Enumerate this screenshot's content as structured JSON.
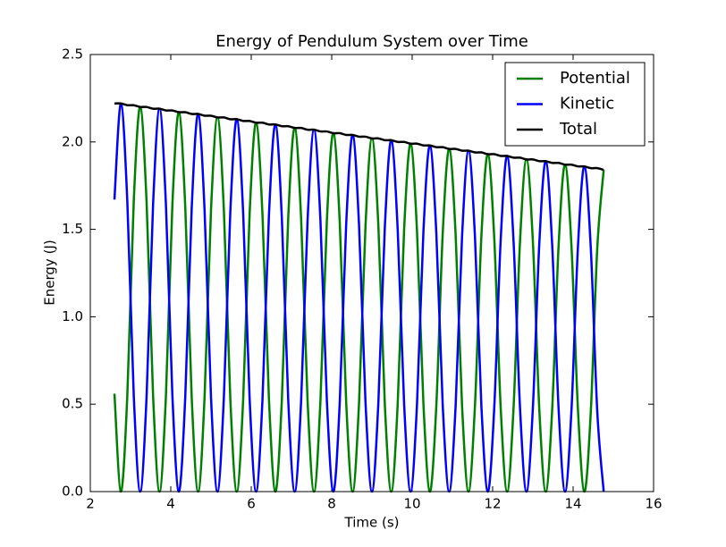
{
  "chart_data": {
    "type": "line",
    "title": "Energy of Pendulum System over Time",
    "x_label": "Time (s)",
    "y_label": "Energy (J)",
    "xlim": [
      2,
      16
    ],
    "ylim": [
      0,
      2.5
    ],
    "xticks": [
      2,
      4,
      6,
      8,
      10,
      12,
      14,
      16
    ],
    "yticks": [
      {
        "value": 0,
        "label": "0.0"
      },
      0.5,
      {
        "value": 1,
        "label": "1.0"
      },
      1.5,
      {
        "value": 2,
        "label": "2.0"
      },
      2.5
    ],
    "grid": false,
    "legend": "upper right",
    "x": [
      2.6,
      2.76,
      2.92,
      3.08,
      3.24,
      3.4,
      3.56,
      3.72,
      3.88,
      4.04,
      4.2,
      4.36,
      4.52,
      4.68,
      4.84,
      5.0,
      5.16,
      5.32,
      5.48,
      5.64,
      5.8,
      5.96,
      6.12,
      6.28,
      6.44,
      6.6,
      6.76,
      6.92,
      7.08,
      7.24,
      7.4,
      7.56,
      7.72,
      7.88,
      8.04,
      8.2,
      8.36,
      8.52,
      8.68,
      8.84,
      9.0,
      9.16,
      9.32,
      9.48,
      9.64,
      9.8,
      9.96,
      10.12,
      10.28,
      10.44,
      10.6,
      10.76,
      10.92,
      11.08,
      11.24,
      11.4,
      11.56,
      11.72,
      11.88,
      12.04,
      12.2,
      12.36,
      12.52,
      12.68,
      12.84,
      13.0,
      13.16,
      13.32,
      13.48,
      13.64,
      13.8,
      13.96,
      14.12,
      14.28,
      14.44,
      14.6,
      14.76
    ],
    "series": [
      {
        "name": "Potential",
        "color": "#008000",
        "values": [
          0.56,
          0,
          0.55,
          1.66,
          2.2,
          1.65,
          0.55,
          0,
          0.55,
          1.64,
          2.17,
          1.63,
          0.54,
          0,
          0.54,
          1.61,
          2.14,
          1.61,
          0.53,
          0,
          0.53,
          1.59,
          2.11,
          1.58,
          0.53,
          0,
          0.52,
          1.57,
          2.08,
          1.56,
          0.52,
          0,
          0.52,
          1.55,
          2.05,
          1.54,
          0.51,
          0,
          0.51,
          1.52,
          2.02,
          1.52,
          0.5,
          0,
          0.5,
          1.5,
          1.99,
          1.49,
          0.5,
          0,
          0.49,
          1.48,
          1.96,
          1.47,
          0.49,
          0,
          0.49,
          1.46,
          1.93,
          1.45,
          0.48,
          0,
          0.48,
          1.43,
          1.9,
          1.43,
          0.47,
          0,
          0.47,
          1.41,
          1.87,
          1.4,
          0.47,
          0,
          0.46,
          1.39,
          1.84
        ]
      },
      {
        "name": "Kinetic",
        "color": "#0000ff",
        "values": [
          1.67,
          2.22,
          1.66,
          0.55,
          0,
          0.55,
          1.64,
          2.19,
          1.64,
          0.55,
          0,
          0.54,
          1.62,
          2.16,
          1.61,
          0.54,
          0,
          0.54,
          1.6,
          2.13,
          1.59,
          0.53,
          0,
          0.53,
          1.58,
          2.1,
          1.57,
          0.52,
          0,
          0.52,
          1.55,
          2.07,
          1.55,
          0.52,
          0,
          0.51,
          1.53,
          2.04,
          1.52,
          0.51,
          0,
          0.51,
          1.51,
          2.01,
          1.5,
          0.5,
          0,
          0.5,
          1.49,
          1.98,
          1.48,
          0.49,
          0,
          0.49,
          1.46,
          1.95,
          1.46,
          0.49,
          0,
          0.48,
          1.44,
          1.92,
          1.43,
          0.48,
          0,
          0.48,
          1.42,
          1.89,
          1.41,
          0.47,
          0,
          0.47,
          1.4,
          1.86,
          1.39,
          0.46,
          0
        ]
      },
      {
        "name": "Total",
        "color": "#000000",
        "values": [
          2.22,
          2.22,
          2.21,
          2.21,
          2.2,
          2.2,
          2.19,
          2.19,
          2.18,
          2.18,
          2.17,
          2.17,
          2.16,
          2.16,
          2.15,
          2.15,
          2.14,
          2.14,
          2.13,
          2.13,
          2.12,
          2.12,
          2.11,
          2.11,
          2.1,
          2.1,
          2.09,
          2.09,
          2.08,
          2.08,
          2.07,
          2.07,
          2.06,
          2.06,
          2.05,
          2.05,
          2.04,
          2.04,
          2.03,
          2.03,
          2.02,
          2.02,
          2.01,
          2.01,
          2,
          2,
          1.99,
          1.99,
          1.98,
          1.98,
          1.97,
          1.97,
          1.96,
          1.96,
          1.95,
          1.95,
          1.94,
          1.94,
          1.93,
          1.93,
          1.92,
          1.92,
          1.91,
          1.91,
          1.9,
          1.9,
          1.89,
          1.89,
          1.88,
          1.88,
          1.87,
          1.87,
          1.86,
          1.86,
          1.85,
          1.85,
          1.84
        ]
      }
    ]
  }
}
